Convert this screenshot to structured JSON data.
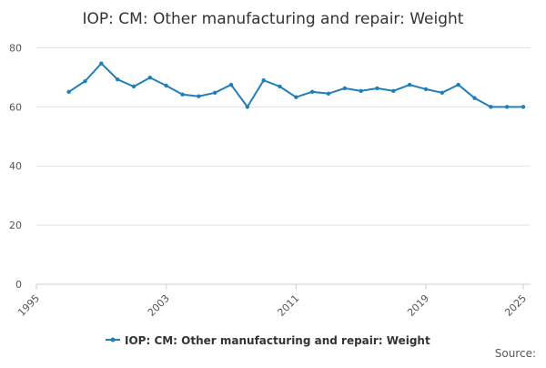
{
  "chart_data": {
    "type": "line",
    "title": "IOP: CM: Other manufacturing and repair: Weight",
    "x": [
      1997,
      1998,
      1999,
      2000,
      2001,
      2002,
      2003,
      2004,
      2005,
      2006,
      2007,
      2008,
      2009,
      2010,
      2011,
      2012,
      2013,
      2014,
      2015,
      2016,
      2017,
      2018,
      2019,
      2020,
      2021,
      2022,
      2023,
      2024,
      2025
    ],
    "series": [
      {
        "name": "IOP: CM: Other manufacturing and repair: Weight",
        "color": "#1f7fb8",
        "values": [
          65.1,
          68.7,
          74.7,
          69.3,
          66.9,
          69.9,
          67.2,
          64.2,
          63.6,
          64.8,
          67.5,
          60,
          69,
          66.9,
          63.3,
          65.1,
          64.5,
          66.3,
          65.4,
          66.3,
          65.4,
          67.5,
          66,
          64.8,
          67.5,
          63,
          60,
          60,
          60
        ]
      }
    ],
    "xlim": [
      1995,
      2025
    ],
    "xticks": [
      1995,
      2003,
      2011,
      2019,
      2025
    ],
    "ylim": [
      0,
      82
    ],
    "yticks": [
      0,
      20,
      40,
      60,
      80
    ],
    "grid": true,
    "source": "Source:"
  }
}
